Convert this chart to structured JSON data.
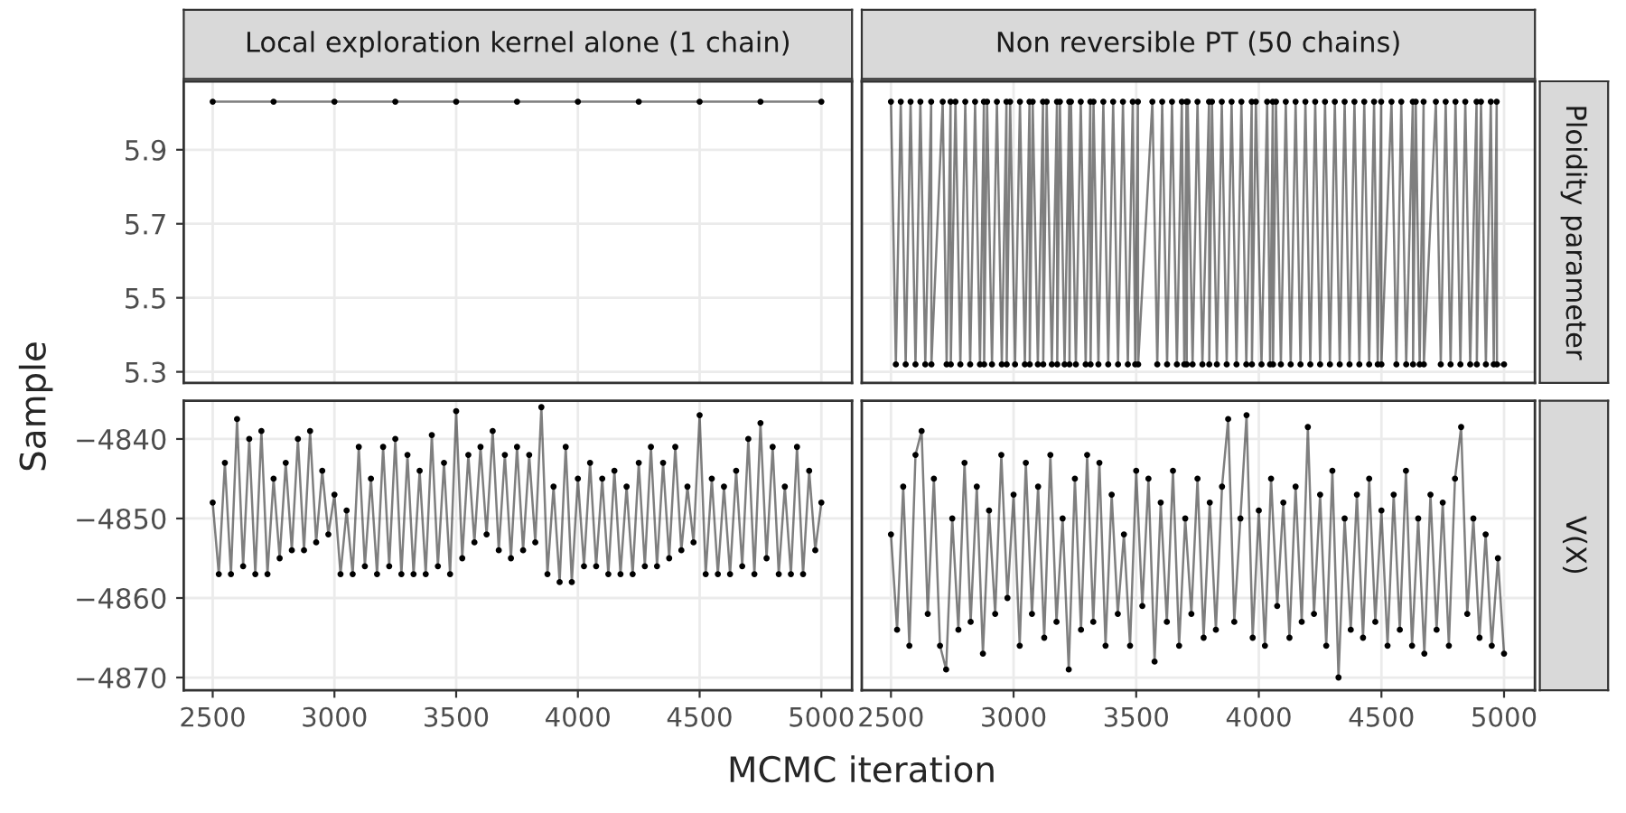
{
  "chart_data": [
    {
      "type": "line",
      "title": "Local exploration kernel alone (1 chain)",
      "ylabel": "Sample",
      "marker": "circle",
      "grid": true,
      "legend": false,
      "tick_labels": "y",
      "xlim": [
        2381,
        5126
      ],
      "xticks": [
        2500,
        3000,
        3500,
        4000,
        4500,
        5000
      ],
      "ylim": [
        5.27,
        6.085
      ],
      "yticks": [
        5.3,
        5.5,
        5.7,
        5.9
      ],
      "series": [
        {
          "color": "#000000",
          "x": [
            2500,
            2750,
            3000,
            3250,
            3500,
            3750,
            4000,
            4250,
            4500,
            4750,
            5000
          ],
          "values": [
            6.03,
            6.03,
            6.03,
            6.03,
            6.03,
            6.03,
            6.03,
            6.03,
            6.03,
            6.03,
            6.03
          ]
        }
      ]
    },
    {
      "type": "line",
      "title": "Non reversible PT (50 chains)",
      "y2label": "Ploidity parameter",
      "marker": "circle",
      "grid": true,
      "legend": false,
      "tick_labels": false,
      "xlim": [
        2381,
        5126
      ],
      "xticks": [
        2500,
        3000,
        3500,
        4000,
        4500,
        5000
      ],
      "ylim": [
        5.27,
        6.085
      ],
      "yticks": [
        5.3,
        5.5,
        5.7,
        5.9
      ],
      "series": [
        {
          "color": "#000000",
          "x": [
            2500,
            2520,
            2540,
            2560,
            2580,
            2600,
            2620,
            2640,
            2664,
            2665,
            2711,
            2727,
            2743,
            2744,
            2763,
            2783,
            2803,
            2823,
            2843,
            2863,
            2879,
            2880,
            2892,
            2912,
            2932,
            2952,
            2971,
            2972,
            2986,
            3006,
            3026,
            3046,
            3065,
            3066,
            3078,
            3099,
            3120,
            3121,
            3135,
            3156,
            3177,
            3178,
            3189,
            3208,
            3227,
            3228,
            3234,
            3254,
            3274,
            3294,
            3313,
            3314,
            3326,
            3346,
            3366,
            3386,
            3406,
            3426,
            3446,
            3466,
            3486,
            3496,
            3507,
            3508,
            3566,
            3586,
            3606,
            3626,
            3646,
            3666,
            3686,
            3696,
            3705,
            3706,
            3710,
            3730,
            3750,
            3770,
            3797,
            3798,
            3809,
            3829,
            3849,
            3869,
            3889,
            3909,
            3929,
            3949,
            3971,
            3972,
            3988,
            4011,
            4034,
            4046,
            4057,
            4058,
            4070,
            4090,
            4110,
            4130,
            4150,
            4170,
            4190,
            4210,
            4230,
            4250,
            4270,
            4290,
            4310,
            4330,
            4350,
            4370,
            4390,
            4410,
            4430,
            4450,
            4470,
            4485,
            4499,
            4500,
            4541,
            4561,
            4581,
            4601,
            4628,
            4629,
            4640,
            4656,
            4672,
            4673,
            4722,
            4742,
            4762,
            4782,
            4802,
            4822,
            4842,
            4862,
            4888,
            4889,
            4906,
            4926,
            4946,
            4958,
            4970,
            4971,
            5000
          ],
          "values": [
            6.03,
            5.32,
            6.03,
            5.32,
            6.03,
            5.32,
            6.03,
            5.32,
            6.03,
            5.32,
            6.03,
            5.32,
            6.03,
            5.32,
            6.03,
            5.32,
            6.03,
            5.32,
            6.03,
            5.32,
            6.03,
            5.32,
            6.03,
            5.32,
            6.03,
            5.32,
            6.03,
            5.32,
            6.03,
            5.32,
            6.03,
            5.32,
            6.03,
            5.32,
            6.03,
            5.32,
            6.03,
            5.32,
            6.03,
            5.32,
            6.03,
            5.32,
            6.03,
            5.32,
            6.03,
            5.32,
            6.03,
            5.32,
            6.03,
            5.32,
            6.03,
            5.32,
            6.03,
            5.32,
            6.03,
            5.32,
            6.03,
            5.32,
            6.03,
            5.32,
            6.03,
            5.32,
            6.03,
            5.32,
            6.03,
            5.32,
            6.03,
            5.32,
            6.03,
            5.32,
            6.03,
            5.32,
            6.03,
            5.32,
            6.03,
            5.32,
            6.03,
            5.32,
            6.03,
            5.32,
            6.03,
            5.32,
            6.03,
            5.32,
            6.03,
            5.32,
            6.03,
            5.32,
            6.03,
            5.32,
            6.03,
            5.32,
            6.03,
            5.32,
            6.03,
            5.32,
            6.03,
            5.32,
            6.03,
            5.32,
            6.03,
            5.32,
            6.03,
            5.32,
            6.03,
            5.32,
            6.03,
            5.32,
            6.03,
            5.32,
            6.03,
            5.32,
            6.03,
            5.32,
            6.03,
            5.32,
            6.03,
            5.32,
            6.03,
            5.32,
            6.03,
            5.32,
            6.03,
            5.32,
            6.03,
            5.32,
            6.03,
            5.32,
            6.03,
            5.32,
            6.03,
            5.32,
            6.03,
            5.32,
            6.03,
            5.32,
            6.03,
            5.32,
            6.03,
            5.32,
            6.03,
            5.32,
            6.03,
            5.32,
            6.03,
            5.32,
            5.32
          ]
        }
      ]
    },
    {
      "type": "line",
      "xlabel": "MCMC iteration",
      "marker": "circle",
      "grid": true,
      "legend": false,
      "xlim": [
        2381,
        5126
      ],
      "xticks": [
        2500,
        3000,
        3500,
        4000,
        4500,
        5000
      ],
      "ylim": [
        -4871.6,
        -4835.2
      ],
      "yticks": [
        {
          "value": -4870,
          "label": "−4870"
        },
        {
          "value": -4860,
          "label": "−4860"
        },
        {
          "value": -4850,
          "label": "−4850"
        },
        {
          "value": -4840,
          "label": "−4840"
        }
      ],
      "series": [
        {
          "color": "#000000",
          "x": [
            2500,
            2525,
            2550,
            2575,
            2600,
            2625,
            2650,
            2675,
            2700,
            2725,
            2750,
            2775,
            2800,
            2825,
            2850,
            2875,
            2900,
            2925,
            2950,
            2975,
            3000,
            3025,
            3050,
            3075,
            3100,
            3125,
            3150,
            3175,
            3200,
            3225,
            3250,
            3275,
            3300,
            3325,
            3350,
            3375,
            3400,
            3425,
            3450,
            3475,
            3500,
            3525,
            3550,
            3575,
            3600,
            3625,
            3650,
            3675,
            3700,
            3725,
            3750,
            3775,
            3800,
            3825,
            3850,
            3875,
            3900,
            3925,
            3950,
            3975,
            4000,
            4025,
            4050,
            4075,
            4100,
            4125,
            4150,
            4175,
            4200,
            4225,
            4250,
            4275,
            4300,
            4325,
            4350,
            4375,
            4400,
            4425,
            4450,
            4475,
            4500,
            4525,
            4550,
            4575,
            4600,
            4625,
            4650,
            4675,
            4700,
            4725,
            4750,
            4775,
            4800,
            4825,
            4850,
            4875,
            4900,
            4925,
            4950,
            4975,
            5000
          ],
          "values": [
            -4848,
            -4857,
            -4843,
            -4857,
            -4837.5,
            -4856,
            -4840,
            -4857,
            -4839,
            -4857,
            -4845,
            -4855,
            -4843,
            -4854,
            -4840,
            -4854,
            -4839,
            -4853,
            -4844,
            -4852,
            -4847,
            -4857,
            -4849,
            -4857,
            -4841,
            -4856,
            -4845,
            -4857,
            -4841,
            -4856,
            -4840,
            -4857,
            -4842,
            -4857,
            -4844,
            -4857,
            -4839.5,
            -4856,
            -4843,
            -4857,
            -4836.5,
            -4855,
            -4842,
            -4853,
            -4841,
            -4852,
            -4839,
            -4854,
            -4842,
            -4855,
            -4841,
            -4854,
            -4842,
            -4853,
            -4836,
            -4857,
            -4846,
            -4858,
            -4841,
            -4858,
            -4845,
            -4856,
            -4843,
            -4856,
            -4845,
            -4857,
            -4844,
            -4857,
            -4846,
            -4857,
            -4843,
            -4856,
            -4841,
            -4856,
            -4843,
            -4855,
            -4841,
            -4854,
            -4846,
            -4853,
            -4837,
            -4857,
            -4845,
            -4857,
            -4846,
            -4857,
            -4844,
            -4856,
            -4840,
            -4857,
            -4838,
            -4855,
            -4841,
            -4857,
            -4846,
            -4857,
            -4841,
            -4857,
            -4844,
            -4854,
            -4848
          ]
        }
      ]
    },
    {
      "type": "line",
      "y2label": "V(X)",
      "marker": "circle",
      "grid": true,
      "legend": false,
      "tick_labels": "x",
      "xlim": [
        2381,
        5126
      ],
      "xticks": [
        2500,
        3000,
        3500,
        4000,
        4500,
        5000
      ],
      "ylim": [
        -4871.6,
        -4835.2
      ],
      "yticks": [
        -4870,
        -4860,
        -4850,
        -4840
      ],
      "series": [
        {
          "color": "#000000",
          "x": [
            2500,
            2525,
            2550,
            2575,
            2600,
            2625,
            2650,
            2675,
            2700,
            2725,
            2750,
            2775,
            2800,
            2825,
            2850,
            2875,
            2900,
            2925,
            2950,
            2975,
            3000,
            3025,
            3050,
            3075,
            3100,
            3125,
            3150,
            3175,
            3200,
            3225,
            3250,
            3275,
            3300,
            3325,
            3350,
            3375,
            3400,
            3425,
            3450,
            3475,
            3500,
            3525,
            3550,
            3575,
            3600,
            3625,
            3650,
            3675,
            3700,
            3725,
            3750,
            3775,
            3800,
            3825,
            3850,
            3875,
            3900,
            3925,
            3950,
            3975,
            4000,
            4025,
            4050,
            4075,
            4100,
            4125,
            4150,
            4175,
            4200,
            4225,
            4250,
            4275,
            4300,
            4325,
            4350,
            4375,
            4400,
            4425,
            4450,
            4475,
            4500,
            4525,
            4550,
            4575,
            4600,
            4625,
            4650,
            4675,
            4700,
            4725,
            4750,
            4775,
            4800,
            4825,
            4850,
            4875,
            4900,
            4925,
            4950,
            4975,
            5000
          ],
          "values": [
            -4852,
            -4864,
            -4846,
            -4866,
            -4842,
            -4839,
            -4862,
            -4845,
            -4866,
            -4869,
            -4850,
            -4864,
            -4843,
            -4863,
            -4846,
            -4867,
            -4849,
            -4862,
            -4842,
            -4860,
            -4847,
            -4866,
            -4843,
            -4862,
            -4846,
            -4865,
            -4842,
            -4863,
            -4850,
            -4869,
            -4845,
            -4864,
            -4842,
            -4863,
            -4843,
            -4866,
            -4847,
            -4862,
            -4852,
            -4866,
            -4844,
            -4861,
            -4845,
            -4868,
            -4848,
            -4863,
            -4844,
            -4866,
            -4850,
            -4862,
            -4845,
            -4865,
            -4848,
            -4864,
            -4846,
            -4837.5,
            -4863,
            -4850,
            -4837,
            -4865,
            -4849,
            -4866,
            -4845,
            -4861,
            -4848,
            -4865,
            -4846,
            -4863,
            -4838.5,
            -4862,
            -4847,
            -4866,
            -4844,
            -4870,
            -4850,
            -4864,
            -4847,
            -4865,
            -4845,
            -4863,
            -4849,
            -4866,
            -4847,
            -4864,
            -4844,
            -4866,
            -4850,
            -4867,
            -4847,
            -4864,
            -4848,
            -4866,
            -4845,
            -4838.5,
            -4862,
            -4850,
            -4865,
            -4852,
            -4866,
            -4855,
            -4867
          ]
        }
      ]
    }
  ]
}
